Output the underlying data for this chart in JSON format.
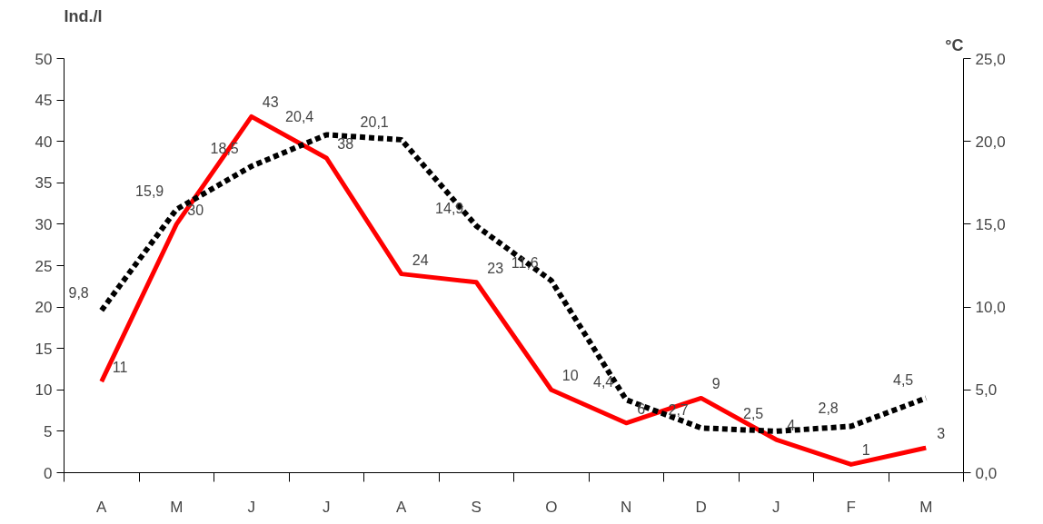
{
  "chart_data": {
    "type": "line",
    "categories": [
      "A",
      "M",
      "J",
      "J",
      "A",
      "S",
      "O",
      "N",
      "D",
      "J",
      "F",
      "M"
    ],
    "ylabel": "Ind./l",
    "y2label": "°C",
    "ylim": [
      0,
      50
    ],
    "yticks": [
      0,
      5,
      10,
      15,
      20,
      25,
      30,
      35,
      40,
      45,
      50
    ],
    "y2lim": [
      0,
      25
    ],
    "y2ticks": [
      {
        "value": 0,
        "label": "0,0"
      },
      {
        "value": 5,
        "label": "5,0"
      },
      {
        "value": 10,
        "label": "10,0"
      },
      {
        "value": 15,
        "label": "15,0"
      },
      {
        "value": 20,
        "label": "20,0"
      },
      {
        "value": 25,
        "label": "25,0"
      }
    ],
    "grid": false,
    "marker": "none",
    "series": [
      {
        "color": "#ff0000",
        "line_style": "solid",
        "values": [
          11,
          30,
          43,
          38,
          24,
          23,
          10,
          6,
          9,
          4,
          1,
          3
        ],
        "value_labels": [
          "11",
          "30",
          "43",
          "38",
          "24",
          "23",
          "10",
          "6",
          "9",
          "4",
          "1",
          "3"
        ]
      },
      {
        "color": "#000000",
        "line_style": "dashed",
        "axis": "y2",
        "values": [
          9.8,
          15.9,
          18.5,
          20.4,
          20.1,
          14.9,
          11.6,
          4.4,
          2.7,
          2.5,
          2.8,
          4.5
        ],
        "value_labels": [
          "9,8",
          "15,9",
          "18,5",
          "20,4",
          "20,1",
          "14,9",
          "11,6",
          "4,4",
          "2,7",
          "2,5",
          "2,8",
          "4,5"
        ]
      }
    ]
  }
}
